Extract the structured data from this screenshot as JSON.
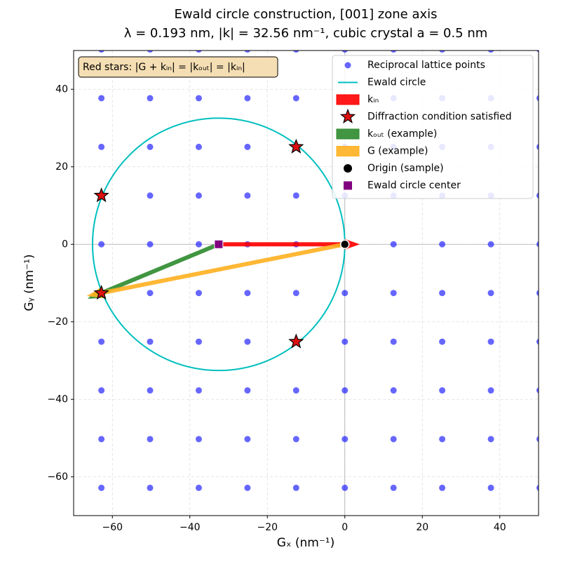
{
  "chart_data": {
    "type": "scatter",
    "title": "Ewald circle construction, [001] zone axis",
    "subtitle": "λ = 0.193 nm, |k| = 32.56 nm⁻¹, cubic crystal a = 0.5 nm",
    "x_label": "Gₓ (nm⁻¹)",
    "y_label": "Gᵧ (nm⁻¹)",
    "annotation": "Red stars: |G + kᵢₙ| = |kₒᵤₜ| = |kᵢₙ|",
    "xlim": [
      -70,
      50
    ],
    "ylim": [
      -70,
      50
    ],
    "xticks": [
      -60,
      -40,
      -20,
      0,
      20,
      40
    ],
    "yticks": [
      -60,
      -40,
      -20,
      0,
      20,
      40
    ],
    "yticklabels_minus": true,
    "grid": true,
    "legend": "upper right",
    "series": [
      {
        "name": "Reciprocal lattice points",
        "type": "scatter",
        "color": "#0000ff",
        "alpha": 0.6,
        "x": [
          -62.83,
          -50.27,
          -37.7,
          -25.13,
          -12.57,
          0,
          12.57,
          25.13,
          37.7,
          50.27,
          -62.83,
          -50.27,
          -37.7,
          -25.13,
          -12.57,
          0,
          12.57,
          25.13,
          37.7,
          50.27,
          -62.83,
          -50.27,
          -37.7,
          -25.13,
          -12.57,
          0,
          12.57,
          25.13,
          37.7,
          50.27,
          -62.83,
          -50.27,
          -37.7,
          -25.13,
          -12.57,
          0,
          12.57,
          25.13,
          37.7,
          50.27,
          -62.83,
          -50.27,
          -37.7,
          -25.13,
          -12.57,
          0,
          12.57,
          25.13,
          37.7,
          50.27,
          -62.83,
          -50.27,
          -37.7,
          -25.13,
          -12.57,
          0,
          12.57,
          25.13,
          37.7,
          50.27,
          -62.83,
          -50.27,
          -37.7,
          -25.13,
          -12.57,
          0,
          12.57,
          25.13,
          37.7,
          50.27,
          -62.83,
          -50.27,
          -37.7,
          -25.13,
          -12.57,
          0,
          12.57,
          25.13,
          37.7,
          50.27,
          -62.83,
          -50.27,
          -37.7,
          -25.13,
          -12.57,
          0,
          12.57,
          25.13,
          37.7,
          50.27,
          -62.83,
          -50.27,
          -37.7,
          -25.13,
          -12.57,
          0,
          12.57,
          25.13,
          37.7,
          50.27
        ],
        "y": [
          -62.83,
          -62.83,
          -62.83,
          -62.83,
          -62.83,
          -62.83,
          -62.83,
          -62.83,
          -62.83,
          -62.83,
          -50.27,
          -50.27,
          -50.27,
          -50.27,
          -50.27,
          -50.27,
          -50.27,
          -50.27,
          -50.27,
          -50.27,
          -37.7,
          -37.7,
          -37.7,
          -37.7,
          -37.7,
          -37.7,
          -37.7,
          -37.7,
          -37.7,
          -37.7,
          -25.13,
          -25.13,
          -25.13,
          -25.13,
          -25.13,
          -25.13,
          -25.13,
          -25.13,
          -25.13,
          -25.13,
          -12.57,
          -12.57,
          -12.57,
          -12.57,
          -12.57,
          -12.57,
          -12.57,
          -12.57,
          -12.57,
          -12.57,
          0,
          0,
          0,
          0,
          0,
          0,
          0,
          0,
          0,
          0,
          12.57,
          12.57,
          12.57,
          12.57,
          12.57,
          12.57,
          12.57,
          12.57,
          12.57,
          12.57,
          25.13,
          25.13,
          25.13,
          25.13,
          25.13,
          25.13,
          25.13,
          25.13,
          25.13,
          25.13,
          37.7,
          37.7,
          37.7,
          37.7,
          37.7,
          37.7,
          37.7,
          37.7,
          37.7,
          37.7,
          50.27,
          50.27,
          50.27,
          50.27,
          50.27,
          50.27,
          50.27,
          50.27,
          50.27,
          50.27
        ]
      },
      {
        "name": "Ewald circle",
        "type": "circle",
        "color": "#00bfbf",
        "x": [
          -32.56
        ],
        "y": [
          0
        ],
        "radius": 32.56
      },
      {
        "name": "kᵢₙ",
        "type": "arrow",
        "color": "#ff0000",
        "x": [
          -32.56,
          0
        ],
        "y": [
          0,
          0
        ]
      },
      {
        "name": "Diffraction condition satisfied",
        "type": "star",
        "color": "#dd1111",
        "x": [
          -12.57,
          -62.83,
          -62.83,
          -12.57
        ],
        "y": [
          25.13,
          12.57,
          -12.57,
          -25.13
        ]
      },
      {
        "name": "kₒᵤₜ (example)",
        "type": "arrow",
        "color": "#2e8b2e",
        "x": [
          -32.56,
          -62.83
        ],
        "y": [
          0,
          -12.57
        ]
      },
      {
        "name": "G (example)",
        "type": "arrow",
        "color": "#ffb020",
        "x": [
          0,
          -62.83
        ],
        "y": [
          0,
          -12.57
        ]
      },
      {
        "name": "Origin (sample)",
        "type": "dot",
        "color": "#000000",
        "x": [
          0
        ],
        "y": [
          0
        ]
      },
      {
        "name": "Ewald circle center",
        "type": "square",
        "color": "#800080",
        "x": [
          -32.56
        ],
        "y": [
          0
        ]
      }
    ]
  }
}
